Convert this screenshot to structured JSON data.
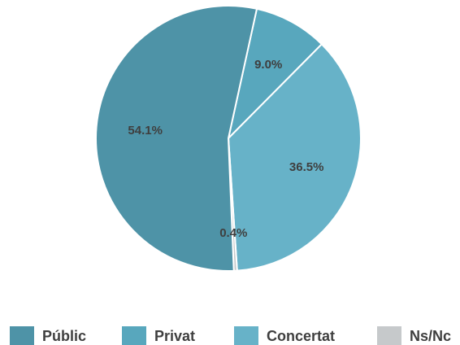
{
  "chart_data": {
    "type": "pie",
    "slices": [
      {
        "name": "Privat",
        "value": 9.0,
        "label": "9.0%",
        "color": "#58a7bd"
      },
      {
        "name": "Concertat",
        "value": 36.5,
        "label": "36.5%",
        "color": "#67b2c8"
      },
      {
        "name": "Ns/Nc",
        "value": 0.4,
        "label": "0.4%",
        "color": "#c6c9cb"
      },
      {
        "name": "Públic",
        "value": 54.1,
        "label": "54.1%",
        "color": "#4e93a7"
      }
    ],
    "legend": {
      "placement": "bottom",
      "entries": [
        {
          "name": "Públic",
          "color": "#4e93a7"
        },
        {
          "name": "Privat",
          "color": "#58a7bd"
        },
        {
          "name": "Concertat",
          "color": "#67b2c8"
        },
        {
          "name": "Ns/Nc",
          "color": "#c6c9cb"
        }
      ]
    }
  }
}
